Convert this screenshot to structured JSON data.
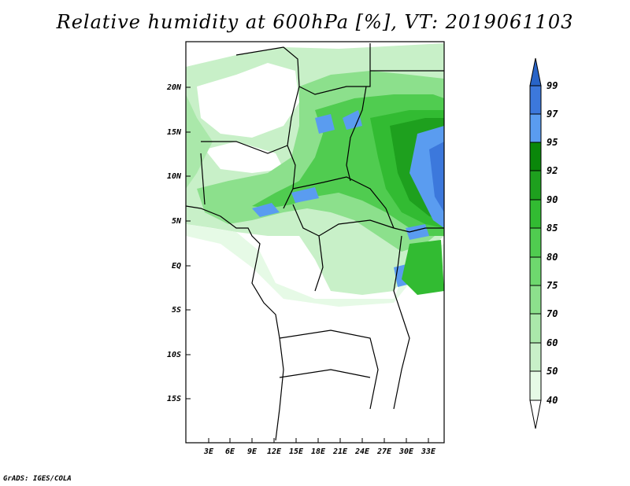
{
  "title": "Relative humidity at 600hPa [%], VT: 2019061103",
  "credit": "GrADS: IGES/COLA",
  "map": {
    "x_ticks": [
      "3E",
      "6E",
      "9E",
      "12E",
      "15E",
      "18E",
      "21E",
      "24E",
      "27E",
      "30E",
      "33E"
    ],
    "y_ticks": [
      "20N",
      "15N",
      "10N",
      "5N",
      "EQ",
      "5S",
      "10S",
      "15S"
    ]
  },
  "colorbar": {
    "levels": [
      "40",
      "50",
      "60",
      "70",
      "75",
      "80",
      "85",
      "90",
      "92",
      "95",
      "97",
      "99"
    ],
    "colors": [
      "#ffffff",
      "#e6fae6",
      "#c8f0c8",
      "#aae8aa",
      "#8ce08c",
      "#6ed86e",
      "#50cc50",
      "#32bb32",
      "#1ea01e",
      "#0a870a",
      "#5a9cf0",
      "#3c78dc",
      "#2864c8"
    ]
  },
  "chart_data": {
    "type": "heatmap",
    "variable": "Relative humidity at 600hPa [%]",
    "valid_time": "2019061103",
    "lon_ticks": [
      "3E",
      "6E",
      "9E",
      "12E",
      "15E",
      "18E",
      "21E",
      "24E",
      "27E",
      "30E",
      "33E"
    ],
    "lat_ticks": [
      "20N",
      "15N",
      "10N",
      "5N",
      "EQ",
      "5S",
      "10S",
      "15S"
    ],
    "contour_levels": [
      40,
      50,
      60,
      70,
      75,
      80,
      85,
      90,
      92,
      95,
      97,
      99
    ]
  }
}
